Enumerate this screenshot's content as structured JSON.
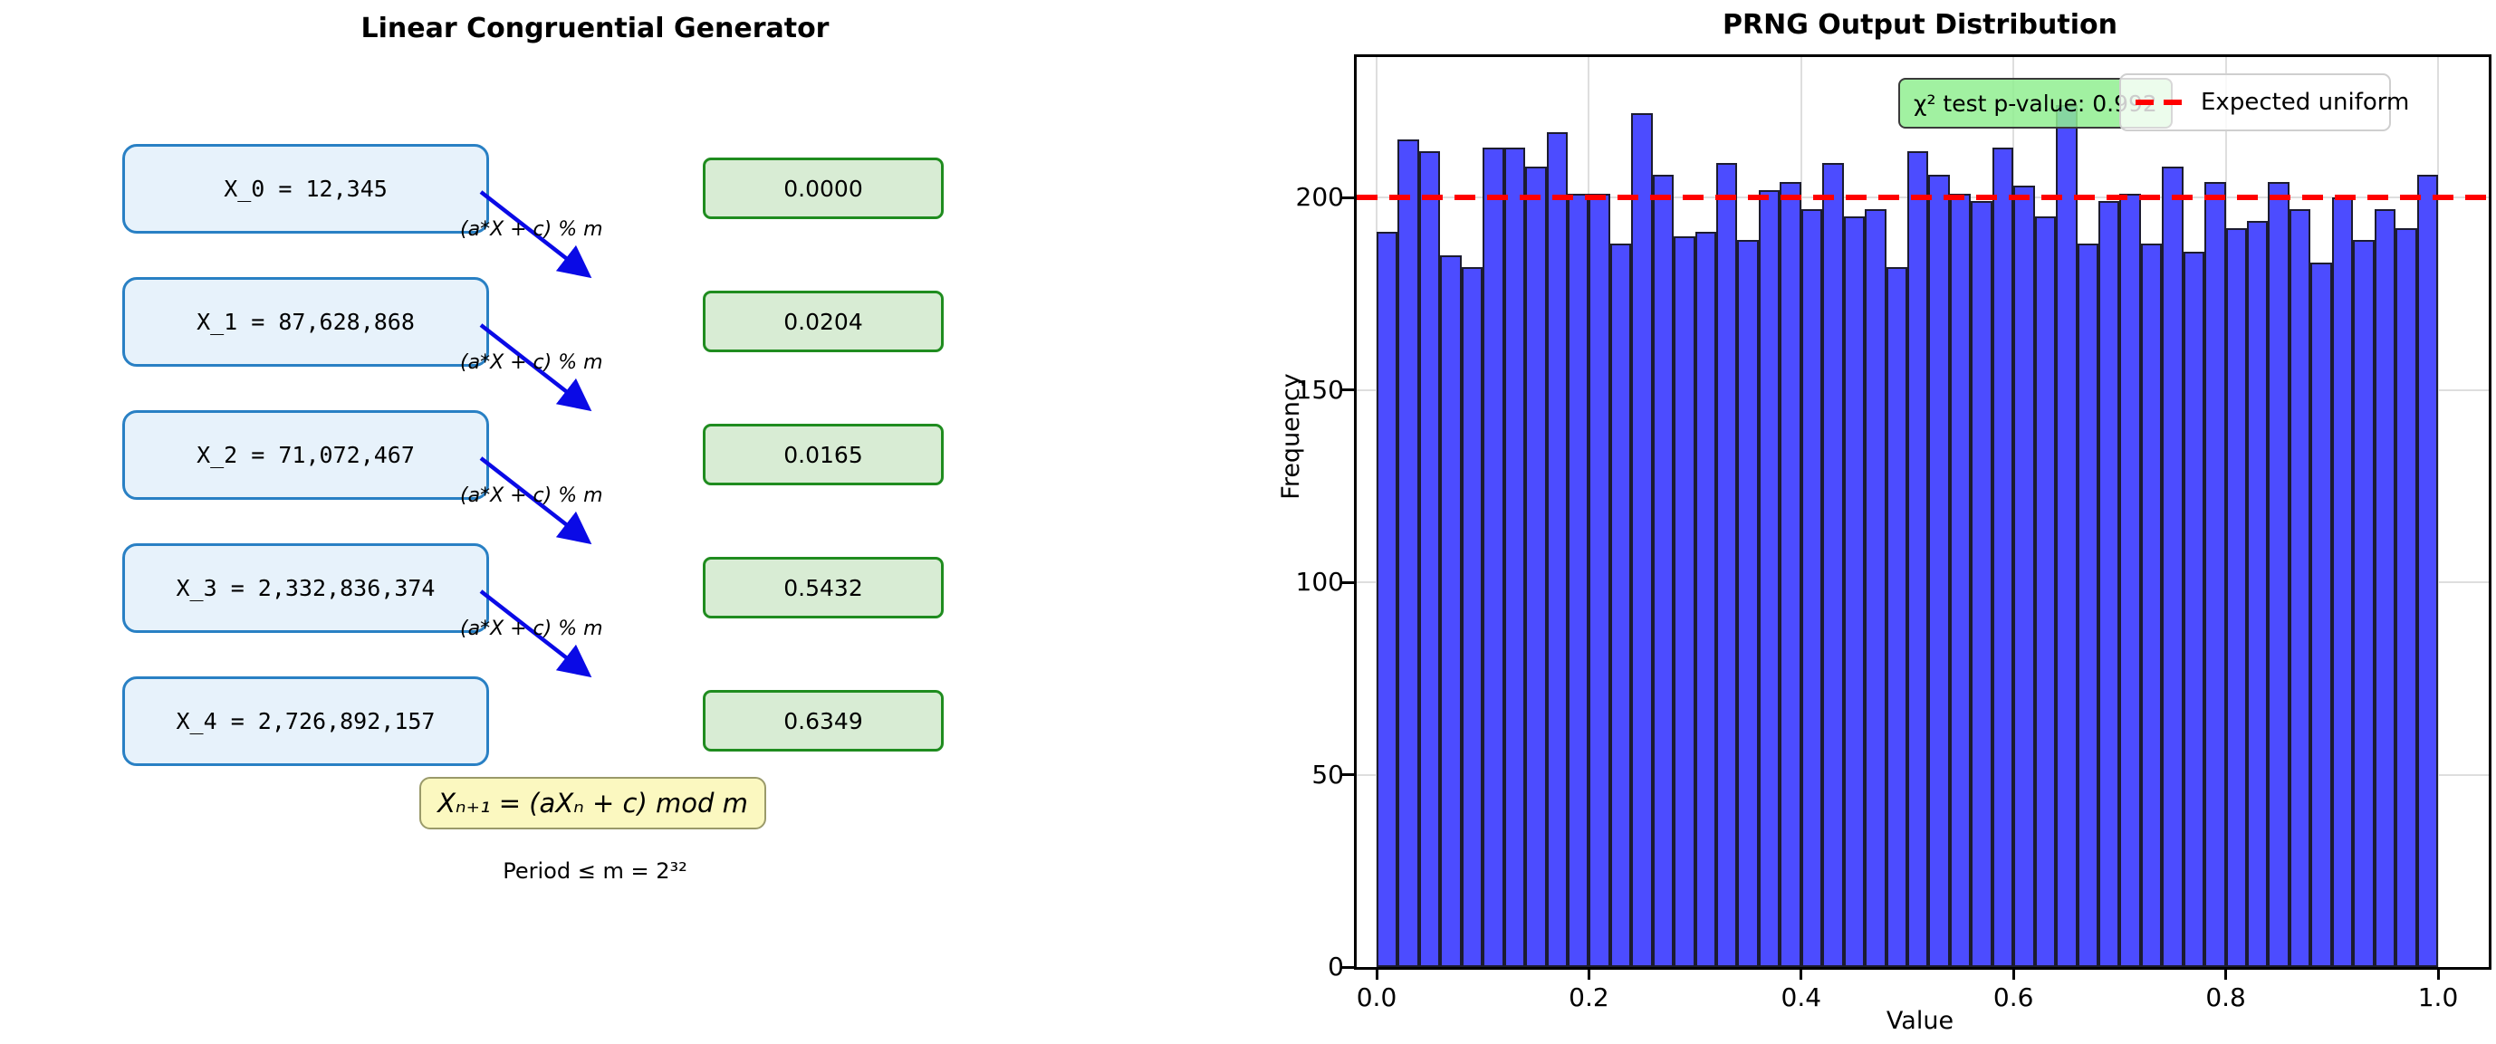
{
  "left_panel": {
    "title": "Linear Congruential Generator",
    "states": [
      {
        "label": "X_0 = 12,345",
        "output": "0.0000"
      },
      {
        "label": "X_1 = 87,628,868",
        "output": "0.0204"
      },
      {
        "label": "X_2 = 71,072,467",
        "output": "0.0165"
      },
      {
        "label": "X_3 = 2,332,836,374",
        "output": "0.5432"
      },
      {
        "label": "X_4 = 2,726,892,157",
        "output": "0.6349"
      }
    ],
    "arrow_label": "(a*X + c) % m",
    "formula": "Xₙ₊₁ = (aXₙ + c) mod m",
    "period_note": "Period ≤ m = 2³²"
  },
  "chart": {
    "title": "PRNG Output Distribution",
    "xlabel": "Value",
    "ylabel": "Frequency",
    "annotation": "χ² test p-value: 0.992",
    "legend_label": "Expected uniform",
    "x_ticks": [
      "0.0",
      "0.2",
      "0.4",
      "0.6",
      "0.8",
      "1.0"
    ],
    "y_ticks": [
      0,
      50,
      100,
      150,
      200
    ]
  },
  "chart_data": {
    "type": "bar",
    "subtype": "histogram",
    "title": "PRNG Output Distribution",
    "xlabel": "Value",
    "ylabel": "Frequency",
    "x_range": [
      0.0,
      1.0
    ],
    "n_bins": 50,
    "bin_width": 0.02,
    "values": [
      191,
      215,
      212,
      185,
      182,
      213,
      213,
      208,
      217,
      201,
      201,
      188,
      222,
      206,
      190,
      191,
      209,
      189,
      202,
      204,
      197,
      209,
      195,
      197,
      182,
      212,
      206,
      201,
      199,
      213,
      203,
      195,
      224,
      188,
      199,
      201,
      188,
      208,
      186,
      204,
      192,
      194,
      204,
      197,
      183,
      200,
      189,
      197,
      192,
      206
    ],
    "total_samples": 10000,
    "expected_uniform": 200,
    "ylim": [
      0,
      236.5
    ],
    "y_ticks": [
      0,
      50,
      100,
      150,
      200
    ],
    "x_tick_labels": [
      "0.0",
      "0.2",
      "0.4",
      "0.6",
      "0.8",
      "1.0"
    ],
    "grid": true,
    "legend_position": "upper right"
  },
  "colors": {
    "bar_fill": "#4C4CFF",
    "bar_edge": "#1c1c30",
    "expected_line": "#ff0000",
    "state_box_fill": "#e7f2fb",
    "state_box_edge": "#2980c4",
    "output_box_fill": "#d8ecd4",
    "output_box_edge": "#1f8c1f",
    "formula_box_fill": "#fbf8c0",
    "arrow": "#0a0ae6",
    "annotation_fill": "#90EE90"
  }
}
